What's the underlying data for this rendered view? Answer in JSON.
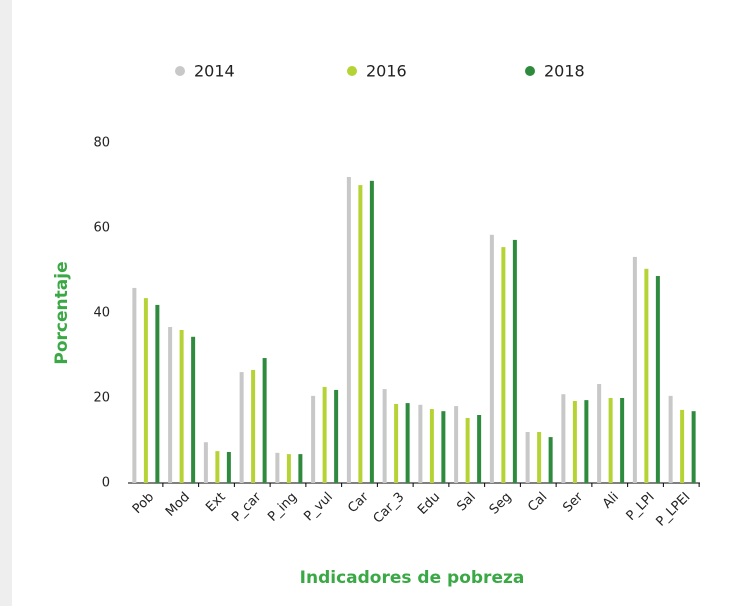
{
  "chart_data": {
    "type": "bar",
    "categories": [
      "Pob",
      "Mod",
      "Ext",
      "P_car",
      "P_ing",
      "P_vul",
      "Car",
      "Car_3",
      "Edu",
      "Sal",
      "Seg",
      "Cal",
      "Ser",
      "Ali",
      "P_LPI",
      "P_LPEI"
    ],
    "series": [
      {
        "name": "2014",
        "color": "#c8c8c8",
        "values": [
          45.9,
          36.7,
          9.6,
          26.1,
          7.1,
          20.5,
          72,
          22.1,
          18.4,
          18.1,
          58.4,
          12,
          20.9,
          23.3,
          53.2,
          20.5
        ]
      },
      {
        "name": "2016",
        "color": "#b5d334",
        "values": [
          43.5,
          36,
          7.5,
          26.6,
          6.8,
          22.6,
          70.1,
          18.6,
          17.4,
          15.3,
          55.5,
          12,
          19.3,
          20,
          50.4,
          17.2
        ]
      },
      {
        "name": "2018",
        "color": "#2e8b3e",
        "values": [
          41.9,
          34.4,
          7.3,
          29.4,
          6.8,
          21.9,
          71.1,
          18.8,
          16.9,
          16,
          57.2,
          10.8,
          19.5,
          20,
          48.7,
          16.9
        ]
      }
    ],
    "x_label": "Indicadores de pobreza",
    "y_label": "Porcentaje",
    "ylim": [
      0,
      80
    ],
    "yticks": [
      0,
      20,
      40,
      60,
      80
    ],
    "grid": false,
    "legend": "top"
  }
}
